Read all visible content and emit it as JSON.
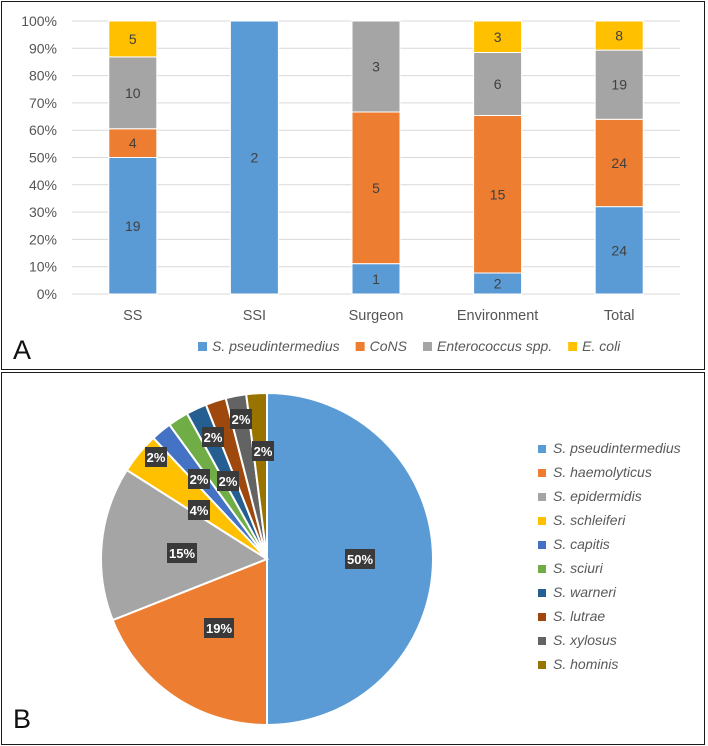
{
  "figure": {
    "panel_a_letter": "A",
    "panel_b_letter": "B"
  },
  "chart_data": [
    {
      "type": "bar",
      "stacked": "percent",
      "categories": [
        "SS",
        "SSI",
        "Surgeon",
        "Environment",
        "Total"
      ],
      "series": [
        {
          "name": "S. pseudintermedius",
          "color": "#5b9bd5",
          "values": [
            19,
            2,
            1,
            2,
            24
          ]
        },
        {
          "name": "CoNS",
          "color": "#ed7d31",
          "values": [
            4,
            0,
            5,
            15,
            24
          ]
        },
        {
          "name": "Enterococcus spp.",
          "color": "#a5a5a5",
          "values": [
            10,
            0,
            3,
            6,
            19
          ]
        },
        {
          "name": "E. coli",
          "color": "#ffc000",
          "values": [
            5,
            0,
            0,
            3,
            8
          ]
        }
      ],
      "y_ticks": [
        "0%",
        "10%",
        "20%",
        "30%",
        "40%",
        "50%",
        "60%",
        "70%",
        "80%",
        "90%",
        "100%"
      ],
      "ylim": [
        0,
        100
      ],
      "legend": "bottom",
      "grid": true
    },
    {
      "type": "pie",
      "labels": [
        "S. pseudintermedius",
        "S. haemolyticus",
        "S. epidermidis",
        "S. schleiferi",
        "S. capitis",
        "S. sciuri",
        "S. warneri",
        "S. lutrae",
        "S. xylosus",
        "S. hominis"
      ],
      "values": [
        50,
        19,
        15,
        4,
        2,
        2,
        2,
        2,
        2,
        2
      ],
      "display_labels": [
        "50%",
        "19%",
        "15%",
        "4%",
        "2%",
        "2%",
        "2%",
        "2%",
        "2%",
        "2%"
      ],
      "colors": [
        "#5b9bd5",
        "#ed7d31",
        "#a5a5a5",
        "#ffc000",
        "#4472c4",
        "#70ad47",
        "#255e91",
        "#9e480e",
        "#636363",
        "#997300"
      ],
      "legend": "right"
    }
  ]
}
